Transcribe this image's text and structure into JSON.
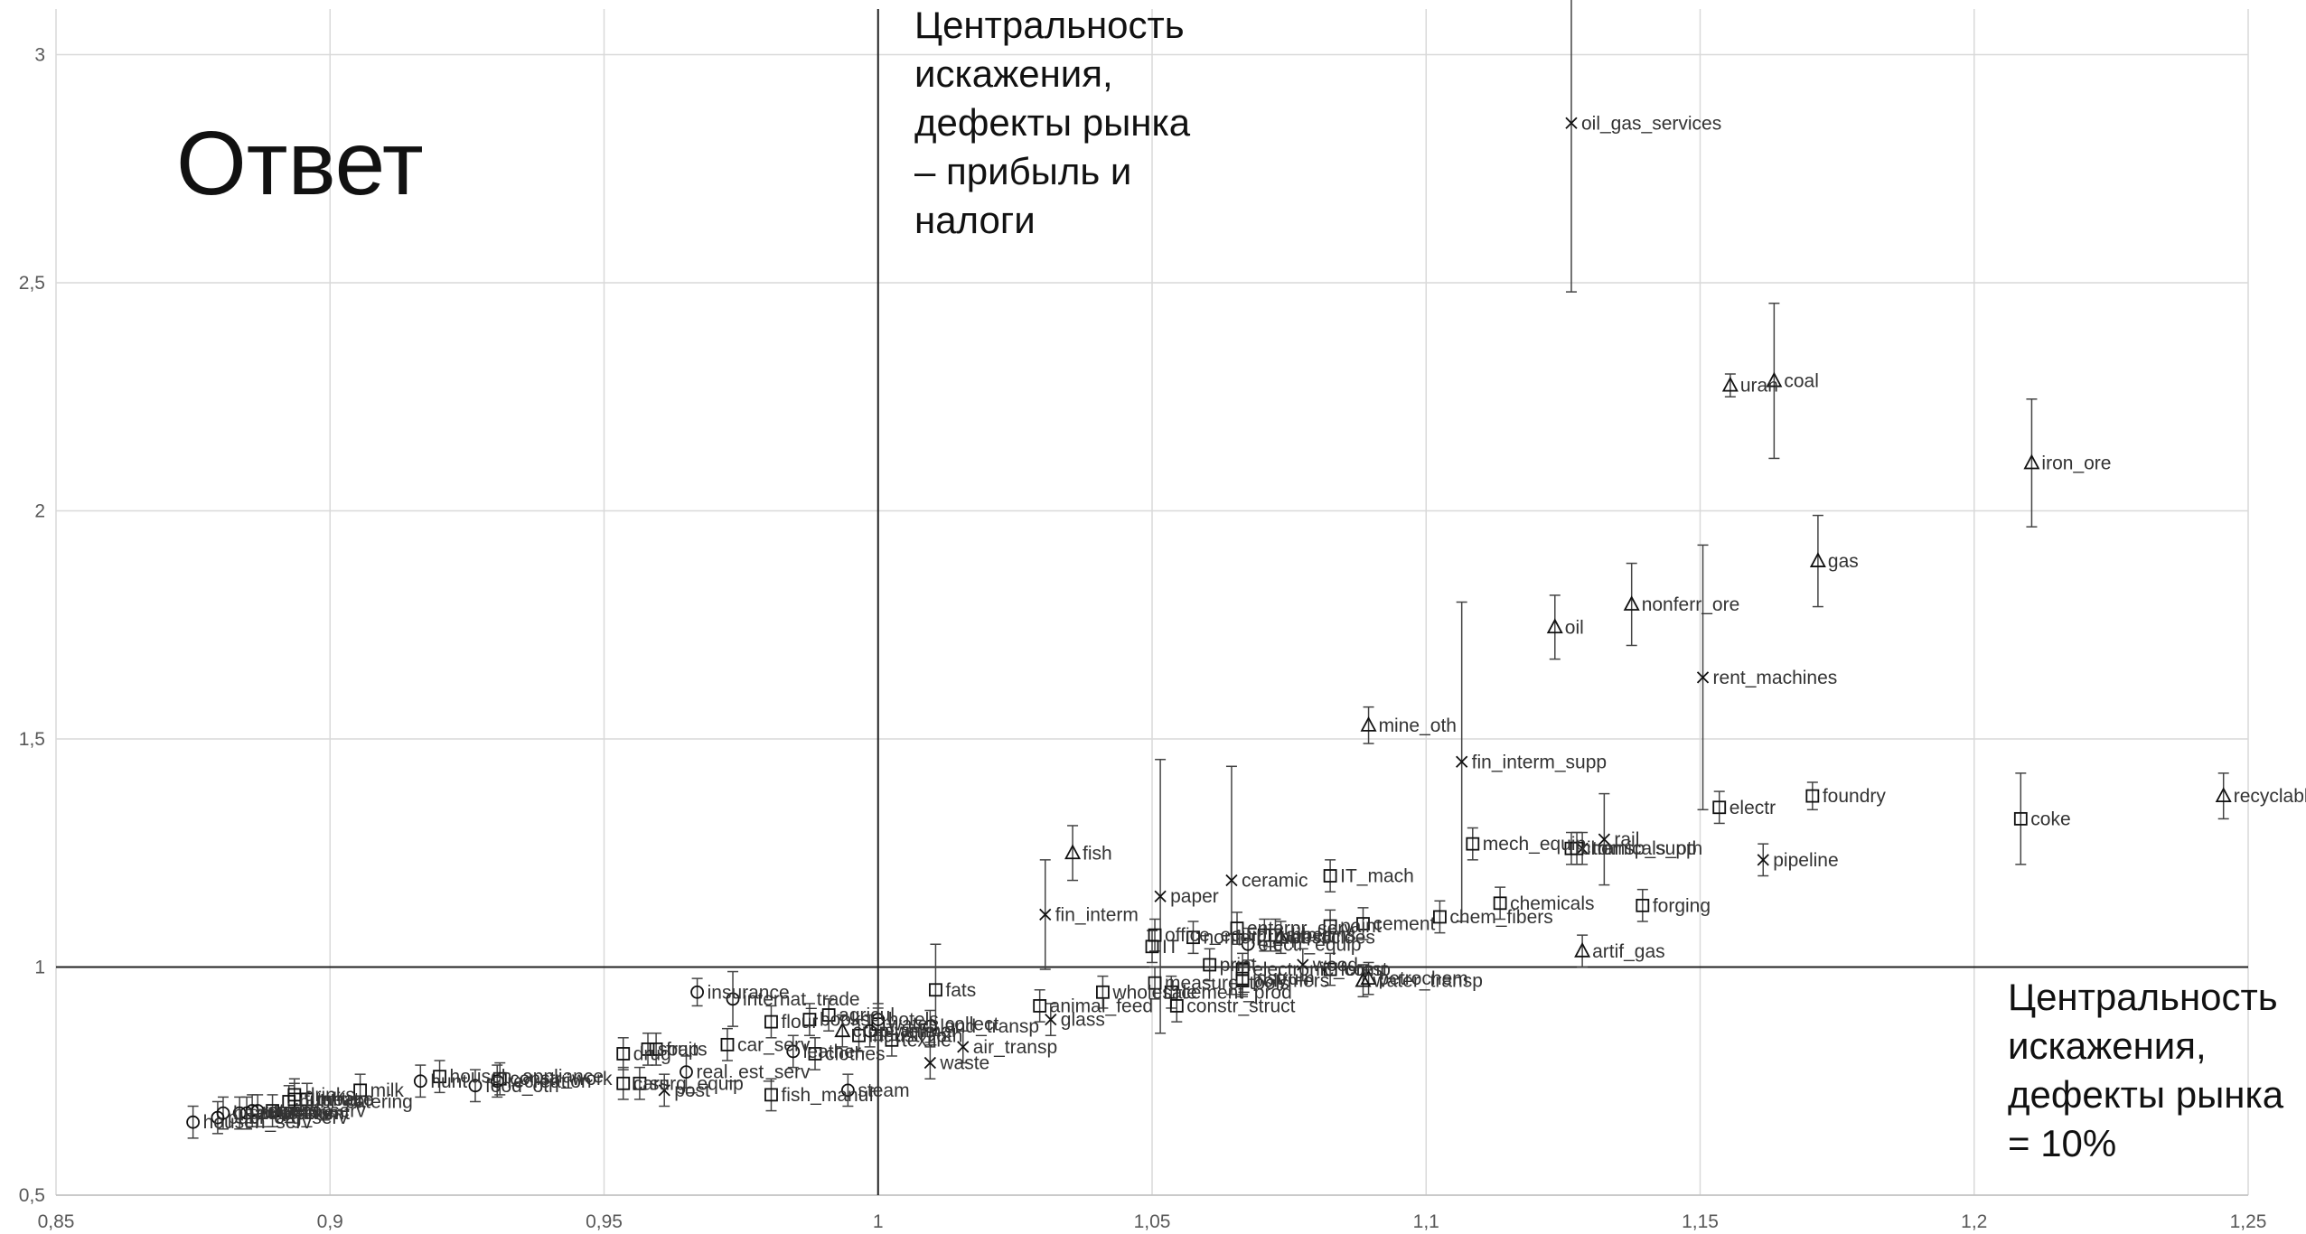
{
  "chart_data": {
    "type": "scatter",
    "title": "Ответ",
    "annotations": [
      [
        "Центральность",
        "искажения,",
        "дефекты рынка",
        "– прибыль и",
        "налоги"
      ],
      [
        "Центральность",
        "искажения,",
        "дефекты рынка",
        "= 10%"
      ]
    ],
    "xlim": [
      0.85,
      1.25
    ],
    "ylim": [
      0.5,
      3.1
    ],
    "x_ticks": [
      "0,85",
      "0,9",
      "0,95",
      "1",
      "1,05",
      "1,1",
      "1,15",
      "1,2",
      "1,25"
    ],
    "y_ticks": [
      "0,5",
      "1",
      "1,5",
      "2",
      "2,5",
      "3"
    ],
    "reference_lines": {
      "x": 1,
      "y": 1
    },
    "grid": true,
    "points": [
      {
        "label": "househ_serv",
        "x": 0.875,
        "y": 0.66,
        "m": "circle"
      },
      {
        "label": "publ_org_serv",
        "x": 0.8795,
        "y": 0.67,
        "m": "circle"
      },
      {
        "label": "health_serv",
        "x": 0.8805,
        "y": 0.68,
        "m": "circle"
      },
      {
        "label": "government",
        "x": 0.8835,
        "y": 0.68,
        "m": "circle"
      },
      {
        "label": "education",
        "x": 0.8848,
        "y": 0.68,
        "m": "circle"
      },
      {
        "label": "retail",
        "x": 0.8858,
        "y": 0.685,
        "m": "circle"
      },
      {
        "label": "science",
        "x": 0.8868,
        "y": 0.685,
        "m": "circle"
      },
      {
        "label": "pers_serv",
        "x": 0.8895,
        "y": 0.685,
        "m": "square"
      },
      {
        "label": "publ_catering",
        "x": 0.8925,
        "y": 0.705,
        "m": "square"
      },
      {
        "label": "furniture",
        "x": 0.8935,
        "y": 0.71,
        "m": "square"
      },
      {
        "label": "drinks",
        "x": 0.8935,
        "y": 0.72,
        "m": "square"
      },
      {
        "label": "tabaco",
        "x": 0.8958,
        "y": 0.71,
        "m": "square"
      },
      {
        "label": "meat",
        "x": 0.8958,
        "y": 0.71,
        "m": "square"
      },
      {
        "label": "milk",
        "x": 0.9055,
        "y": 0.73,
        "m": "square"
      },
      {
        "label": "recreation",
        "x": 0.9305,
        "y": 0.75,
        "m": "circle"
      },
      {
        "label": "househ_appliance",
        "x": 0.92,
        "y": 0.76,
        "m": "square"
      },
      {
        "label": "hunt",
        "x": 0.9165,
        "y": 0.75,
        "m": "circle"
      },
      {
        "label": "food_oth",
        "x": 0.9265,
        "y": 0.74,
        "m": "circle"
      },
      {
        "label": "constr_work",
        "x": 0.931,
        "y": 0.755,
        "m": "square"
      },
      {
        "label": "drug",
        "x": 0.9535,
        "y": 0.81,
        "m": "square"
      },
      {
        "label": "cars",
        "x": 0.9535,
        "y": 0.745,
        "m": "square"
      },
      {
        "label": "surg_equip",
        "x": 0.9565,
        "y": 0.745,
        "m": "square"
      },
      {
        "label": "soap",
        "x": 0.958,
        "y": 0.82,
        "m": "square"
      },
      {
        "label": "fruits",
        "x": 0.9595,
        "y": 0.82,
        "m": "square"
      },
      {
        "label": "post",
        "x": 0.961,
        "y": 0.73,
        "m": "cross"
      },
      {
        "label": "real_est_serv",
        "x": 0.965,
        "y": 0.77,
        "m": "circle"
      },
      {
        "label": "insurance",
        "x": 0.967,
        "y": 0.945,
        "m": "circle"
      },
      {
        "label": "car_serv",
        "x": 0.9725,
        "y": 0.83,
        "m": "square"
      },
      {
        "label": "internat_trade",
        "x": 0.9735,
        "y": 0.93,
        "m": "circle"
      },
      {
        "label": "fish_manuf",
        "x": 0.9805,
        "y": 0.72,
        "m": "square"
      },
      {
        "label": "flour",
        "x": 0.9805,
        "y": 0.88,
        "m": "square"
      },
      {
        "label": "leather",
        "x": 0.9845,
        "y": 0.815,
        "m": "circle"
      },
      {
        "label": "books",
        "x": 0.9875,
        "y": 0.885,
        "m": "square"
      },
      {
        "label": "clothes",
        "x": 0.9885,
        "y": 0.81,
        "m": "square"
      },
      {
        "label": "agricul",
        "x": 0.991,
        "y": 0.895,
        "m": "square"
      },
      {
        "label": "crop_animal",
        "x": 0.9935,
        "y": 0.86,
        "m": "triangle"
      },
      {
        "label": "steam",
        "x": 0.9945,
        "y": 0.73,
        "m": "circle"
      },
      {
        "label": "industr_oth",
        "x": 0.9965,
        "y": 0.85,
        "m": "square"
      },
      {
        "label": "jewelry",
        "x": 0.9985,
        "y": 0.86,
        "m": "circle"
      },
      {
        "label": "hotels",
        "x": 1.0,
        "y": 0.885,
        "m": "circle"
      },
      {
        "label": "water_collect",
        "x": 1.0,
        "y": 0.875,
        "m": "square"
      },
      {
        "label": "textile",
        "x": 1.0025,
        "y": 0.84,
        "m": "square"
      },
      {
        "label": "fats",
        "x": 1.0105,
        "y": 0.95,
        "m": "square"
      },
      {
        "label": "land_transp",
        "x": 1.0095,
        "y": 0.87,
        "m": "circle"
      },
      {
        "label": "waste",
        "x": 1.0095,
        "y": 0.79,
        "m": "cross"
      },
      {
        "label": "air_transp",
        "x": 1.0155,
        "y": 0.825,
        "m": "cross"
      },
      {
        "label": "fin_interm",
        "x": 1.0305,
        "y": 1.115,
        "m": "cross"
      },
      {
        "label": "fish",
        "x": 1.0355,
        "y": 1.25,
        "m": "triangle"
      },
      {
        "label": "animal_feed",
        "x": 1.0295,
        "y": 0.915,
        "m": "square"
      },
      {
        "label": "glass",
        "x": 1.0315,
        "y": 0.885,
        "m": "cross"
      },
      {
        "label": "IT",
        "x": 1.05,
        "y": 1.045,
        "m": "square"
      },
      {
        "label": "measure_tools",
        "x": 1.0505,
        "y": 0.965,
        "m": "square"
      },
      {
        "label": "wholesale",
        "x": 1.041,
        "y": 0.945,
        "m": "square"
      },
      {
        "label": "cement_prod",
        "x": 1.0535,
        "y": 0.945,
        "m": "square"
      },
      {
        "label": "constr_struct",
        "x": 1.0545,
        "y": 0.915,
        "m": "square"
      },
      {
        "label": "paper",
        "x": 1.0515,
        "y": 1.155,
        "m": "cross"
      },
      {
        "label": "office_equip",
        "x": 1.0505,
        "y": 1.07,
        "m": "square"
      },
      {
        "label": "nonferr_met",
        "x": 1.0575,
        "y": 1.065,
        "m": "square"
      },
      {
        "label": "print",
        "x": 1.0605,
        "y": 1.005,
        "m": "square"
      },
      {
        "label": "enterpr_serv",
        "x": 1.0655,
        "y": 1.085,
        "m": "square"
      },
      {
        "label": "ceramic",
        "x": 1.0645,
        "y": 1.19,
        "m": "cross"
      },
      {
        "label": "electr_equip",
        "x": 1.0675,
        "y": 1.05,
        "m": "circle"
      },
      {
        "label": "pesticides",
        "x": 1.0735,
        "y": 1.065,
        "m": "triangle"
      },
      {
        "label": "rubber",
        "x": 1.0705,
        "y": 1.07,
        "m": "square"
      },
      {
        "label": "electronic_comp",
        "x": 1.0665,
        "y": 0.995,
        "m": "square"
      },
      {
        "label": "instrum",
        "x": 1.0665,
        "y": 0.975,
        "m": "square"
      },
      {
        "label": "airplains",
        "x": 1.0725,
        "y": 1.07,
        "m": "square"
      },
      {
        "label": "polymers",
        "x": 1.0665,
        "y": 0.97,
        "m": "square"
      },
      {
        "label": "wood",
        "x": 1.0775,
        "y": 1.005,
        "m": "cross"
      },
      {
        "label": "IT_mach",
        "x": 1.0825,
        "y": 1.2,
        "m": "square"
      },
      {
        "label": "paint",
        "x": 1.0825,
        "y": 1.09,
        "m": "square"
      },
      {
        "label": "cement",
        "x": 1.0885,
        "y": 1.095,
        "m": "square"
      },
      {
        "label": "mine_oth",
        "x": 1.0895,
        "y": 1.53,
        "m": "triangle"
      },
      {
        "label": "forest",
        "x": 1.0825,
        "y": 0.995,
        "m": "square"
      },
      {
        "label": "petrochem",
        "x": 1.0895,
        "y": 0.975,
        "m": "triangle"
      },
      {
        "label": "water_transp",
        "x": 1.0885,
        "y": 0.97,
        "m": "triangle"
      },
      {
        "label": "chem_fibers",
        "x": 1.1025,
        "y": 1.11,
        "m": "square"
      },
      {
        "label": "fin_interm_supp",
        "x": 1.1065,
        "y": 1.45,
        "m": "cross"
      },
      {
        "label": "mech_equip",
        "x": 1.1085,
        "y": 1.27,
        "m": "square"
      },
      {
        "label": "chemicals_oth",
        "x": 1.1265,
        "y": 1.26,
        "m": "square"
      },
      {
        "label": "chemicals",
        "x": 1.1135,
        "y": 1.14,
        "m": "square"
      },
      {
        "label": "iron",
        "x": 1.1275,
        "y": 1.26,
        "m": "square"
      },
      {
        "label": "transp_supp",
        "x": 1.1285,
        "y": 1.26,
        "m": "cross"
      },
      {
        "label": "rail",
        "x": 1.1325,
        "y": 1.28,
        "m": "cross"
      },
      {
        "label": "forging",
        "x": 1.1395,
        "y": 1.135,
        "m": "square"
      },
      {
        "label": "artif_gas",
        "x": 1.1285,
        "y": 1.035,
        "m": "triangle"
      },
      {
        "label": "oil",
        "x": 1.1235,
        "y": 1.745,
        "m": "triangle"
      },
      {
        "label": "nonferr_ore",
        "x": 1.1375,
        "y": 1.795,
        "m": "triangle"
      },
      {
        "label": "oil_gas_services",
        "x": 1.1265,
        "y": 2.85,
        "m": "cross"
      },
      {
        "label": "rent_machines",
        "x": 1.1505,
        "y": 1.635,
        "m": "cross"
      },
      {
        "label": "uran",
        "x": 1.1555,
        "y": 2.275,
        "m": "triangle"
      },
      {
        "label": "coal",
        "x": 1.1635,
        "y": 2.285,
        "m": "triangle"
      },
      {
        "label": "electr",
        "x": 1.1535,
        "y": 1.35,
        "m": "square"
      },
      {
        "label": "pipeline",
        "x": 1.1615,
        "y": 1.235,
        "m": "cross"
      },
      {
        "label": "foundry",
        "x": 1.1705,
        "y": 1.375,
        "m": "square"
      },
      {
        "label": "gas",
        "x": 1.1715,
        "y": 1.89,
        "m": "triangle"
      },
      {
        "label": "iron_ore",
        "x": 1.2105,
        "y": 2.105,
        "m": "triangle"
      },
      {
        "label": "coke",
        "x": 1.2085,
        "y": 1.325,
        "m": "square"
      },
      {
        "label": "recyclables",
        "x": 1.2455,
        "y": 1.375,
        "m": "triangle"
      }
    ]
  }
}
